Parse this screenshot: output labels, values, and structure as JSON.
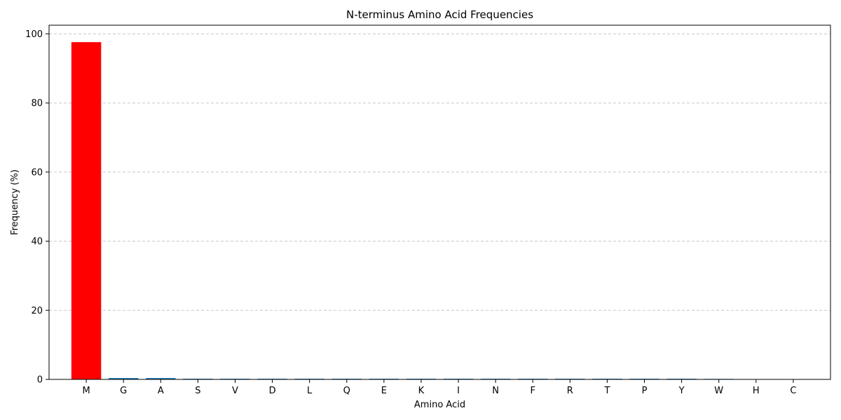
{
  "chart_data": {
    "type": "bar",
    "title": "N-terminus Amino Acid Frequencies",
    "xlabel": "Amino Acid",
    "ylabel": "Frequency (%)",
    "categories": [
      "M",
      "G",
      "A",
      "S",
      "V",
      "D",
      "L",
      "Q",
      "E",
      "K",
      "I",
      "N",
      "F",
      "R",
      "T",
      "P",
      "Y",
      "W",
      "H",
      "C"
    ],
    "values": [
      97.6,
      0.4,
      0.4,
      0.2,
      0.2,
      0.2,
      0.2,
      0.2,
      0.2,
      0.2,
      0.2,
      0.2,
      0.2,
      0.2,
      0.2,
      0.2,
      0.2,
      0.15,
      0.0,
      0.0
    ],
    "highlight_category": "M",
    "ylim": [
      0,
      102.5
    ],
    "yticks": [
      0,
      20,
      40,
      60,
      80,
      100
    ],
    "grid": "y-dashed",
    "colors": {
      "highlight": "#ff0000",
      "default": "#1f77b4",
      "grid": "#c8c8c8",
      "axis": "#000000"
    }
  }
}
